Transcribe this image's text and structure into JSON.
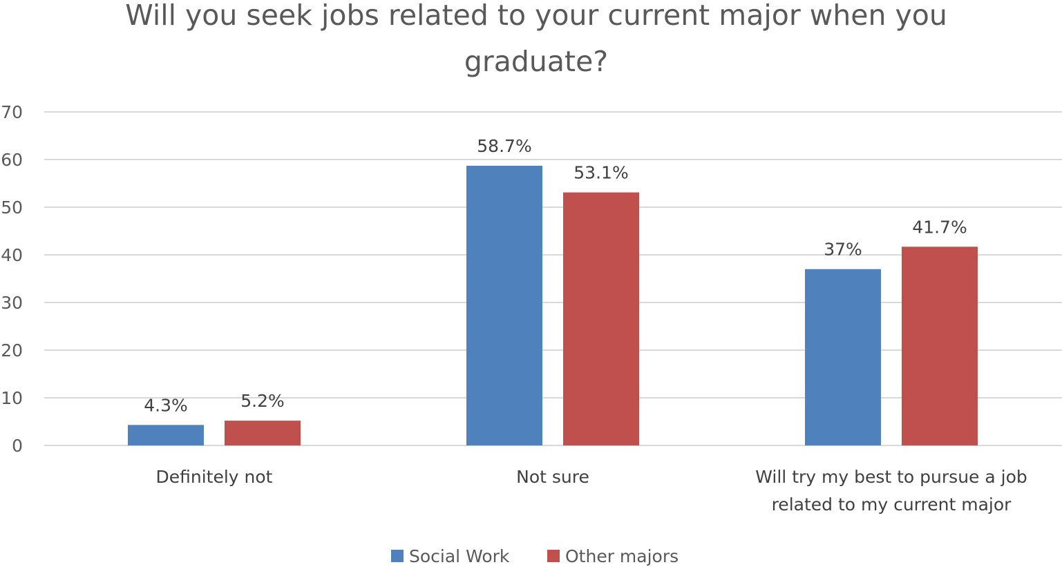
{
  "chart_data": {
    "type": "bar",
    "title_lines": [
      "Will you seek jobs related to your current major when you",
      "graduate?"
    ],
    "categories": [
      [
        "Definitely not"
      ],
      [
        "Not sure"
      ],
      [
        "Will try my best to pursue a job",
        "related to my current major"
      ]
    ],
    "series": [
      {
        "name": "Social Work",
        "color": "#4F81BD",
        "values": [
          4.3,
          58.7,
          37
        ],
        "labels": [
          "4.3%",
          "58.7%",
          "37%"
        ]
      },
      {
        "name": "Other majors",
        "color": "#C0504D",
        "values": [
          5.2,
          53.1,
          41.7
        ],
        "labels": [
          "5.2%",
          "53.1%",
          "41.7%"
        ]
      }
    ],
    "ylim": [
      0,
      70
    ],
    "yticks": [
      0,
      10,
      20,
      30,
      40,
      50,
      60,
      70
    ],
    "grid": true,
    "legend_position": "bottom"
  }
}
